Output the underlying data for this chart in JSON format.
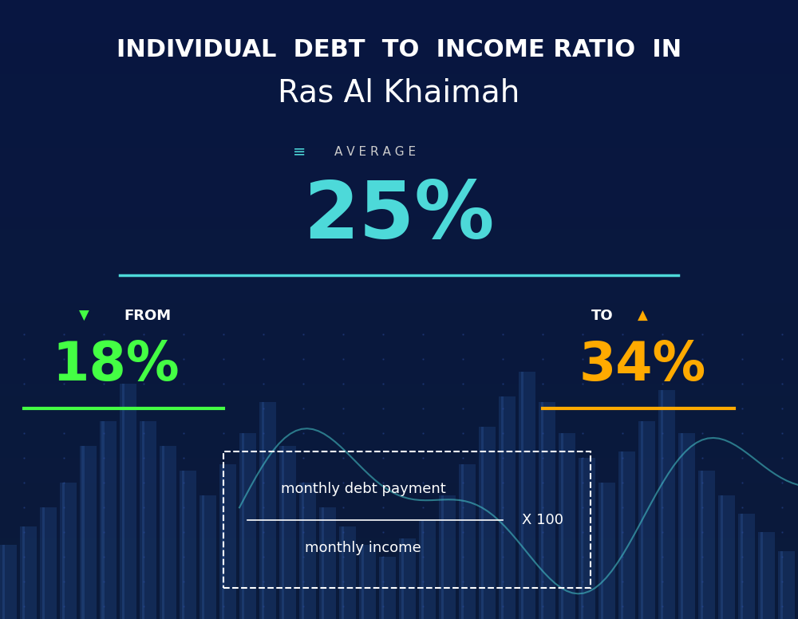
{
  "title_line1": "INDIVIDUAL  DEBT  TO  INCOME RATIO  IN",
  "title_line2": "Ras Al Khaimah",
  "average_label": "AVERAGE",
  "average_value": "25%",
  "from_label": "FROM",
  "from_value": "18%",
  "to_label": "TO",
  "to_value": "34%",
  "formula_numerator": "monthly debt payment",
  "formula_denominator": "monthly income",
  "formula_multiplier": "X 100",
  "bg_color_top": "#0a1a3a",
  "bg_color_bottom": "#0d2a5a",
  "title1_color": "#ffffff",
  "title2_color": "#ffffff",
  "average_icon_color": "#4dd9d9",
  "average_label_color": "#cccccc",
  "average_value_color": "#4dd9d9",
  "average_line_color": "#4dd9d9",
  "from_arrow_color": "#44ff44",
  "from_label_color": "#ffffff",
  "from_value_color": "#44ff44",
  "from_underline_color": "#44ff44",
  "to_arrow_color": "#ffaa00",
  "to_label_color": "#ffffff",
  "to_value_color": "#ffaa00",
  "to_underline_color": "#ffaa00",
  "formula_box_color": "#ffffff",
  "formula_text_color": "#ffffff",
  "bar_color": "#1a3a70",
  "bar_highlight_color": "#2a5090",
  "line_chart_color": "#4dd9d9"
}
